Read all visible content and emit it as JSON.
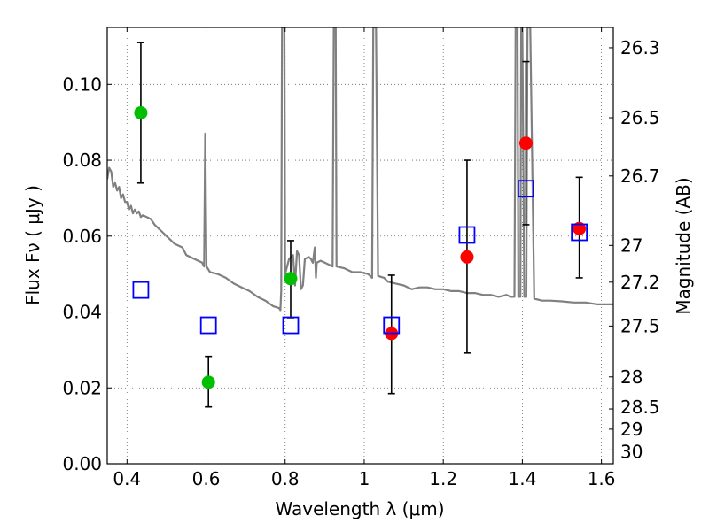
{
  "chart_data": {
    "type": "scatter",
    "xlabel": "Wavelength  λ (μm)",
    "ylabel": "Flux  Fν  ( μJy )",
    "y2label": "Magnitude (AB)",
    "xlim": [
      0.35,
      1.63
    ],
    "ylim": [
      0.0,
      0.115
    ],
    "grid": true,
    "x_ticks": [
      "0.4",
      "0.6",
      "0.8",
      "1",
      "1.2",
      "1.4",
      "1.6"
    ],
    "y_ticks": [
      "0.00",
      "0.02",
      "0.04",
      "0.06",
      "0.08",
      "0.10"
    ],
    "mag_ticks": [
      "26.3",
      "26.5",
      "26.7",
      "27",
      "27.2",
      "27.5",
      "28",
      "28.5",
      "29",
      "30"
    ],
    "series": [
      {
        "marker": "circle",
        "color": "#00bf00",
        "points": [
          {
            "x": 0.435,
            "y": 0.0925,
            "ylo": 0.074,
            "yhi": 0.111
          },
          {
            "x": 0.606,
            "y": 0.0215,
            "ylo": 0.015,
            "yhi": 0.0283
          },
          {
            "x": 0.814,
            "y": 0.0488,
            "ylo": 0.0385,
            "yhi": 0.0588
          }
        ]
      },
      {
        "marker": "circle",
        "color": "#ff0000",
        "points": [
          {
            "x": 1.069,
            "y": 0.0343,
            "ylo": 0.0185,
            "yhi": 0.0497
          },
          {
            "x": 1.26,
            "y": 0.0545,
            "ylo": 0.0292,
            "yhi": 0.08
          },
          {
            "x": 1.409,
            "y": 0.0845,
            "ylo": 0.063,
            "yhi": 0.106
          },
          {
            "x": 1.544,
            "y": 0.062,
            "ylo": 0.049,
            "yhi": 0.0755
          }
        ]
      },
      {
        "marker": "open-square",
        "color": "#0000ff",
        "points": [
          {
            "x": 0.435,
            "y": 0.0458
          },
          {
            "x": 0.606,
            "y": 0.0365
          },
          {
            "x": 0.814,
            "y": 0.0365
          },
          {
            "x": 1.069,
            "y": 0.0365
          },
          {
            "x": 1.26,
            "y": 0.0603
          },
          {
            "x": 1.409,
            "y": 0.0725
          },
          {
            "x": 1.544,
            "y": 0.061
          }
        ]
      },
      {
        "type": "line",
        "color": "#808080",
        "points": [
          [
            0.35,
            0.075
          ],
          [
            0.355,
            0.078
          ],
          [
            0.36,
            0.077
          ],
          [
            0.365,
            0.073
          ],
          [
            0.37,
            0.074
          ],
          [
            0.375,
            0.072
          ],
          [
            0.38,
            0.073
          ],
          [
            0.385,
            0.07
          ],
          [
            0.39,
            0.071
          ],
          [
            0.395,
            0.069
          ],
          [
            0.4,
            0.069
          ],
          [
            0.405,
            0.067
          ],
          [
            0.41,
            0.068
          ],
          [
            0.415,
            0.066
          ],
          [
            0.42,
            0.067
          ],
          [
            0.425,
            0.066
          ],
          [
            0.43,
            0.0665
          ],
          [
            0.435,
            0.065
          ],
          [
            0.44,
            0.0655
          ],
          [
            0.45,
            0.065
          ],
          [
            0.46,
            0.0645
          ],
          [
            0.47,
            0.063
          ],
          [
            0.48,
            0.062
          ],
          [
            0.49,
            0.061
          ],
          [
            0.5,
            0.06
          ],
          [
            0.51,
            0.059
          ],
          [
            0.52,
            0.058
          ],
          [
            0.53,
            0.0575
          ],
          [
            0.54,
            0.057
          ],
          [
            0.55,
            0.055
          ],
          [
            0.56,
            0.0545
          ],
          [
            0.57,
            0.054
          ],
          [
            0.58,
            0.0535
          ],
          [
            0.59,
            0.053
          ],
          [
            0.595,
            0.052
          ],
          [
            0.598,
            0.087
          ],
          [
            0.601,
            0.052
          ],
          [
            0.61,
            0.0505
          ],
          [
            0.63,
            0.05
          ],
          [
            0.65,
            0.049
          ],
          [
            0.67,
            0.0475
          ],
          [
            0.69,
            0.0465
          ],
          [
            0.71,
            0.0455
          ],
          [
            0.73,
            0.044
          ],
          [
            0.75,
            0.043
          ],
          [
            0.77,
            0.0415
          ],
          [
            0.785,
            0.041
          ],
          [
            0.788,
            0.0405
          ],
          [
            0.79,
            0.0455
          ],
          [
            0.792,
            0.115
          ],
          [
            0.798,
            0.115
          ],
          [
            0.8,
            0.05
          ],
          [
            0.81,
            0.054
          ],
          [
            0.82,
            0.055
          ],
          [
            0.825,
            0.047
          ],
          [
            0.83,
            0.056
          ],
          [
            0.835,
            0.055
          ],
          [
            0.84,
            0.046
          ],
          [
            0.845,
            0.047
          ],
          [
            0.85,
            0.054
          ],
          [
            0.86,
            0.0545
          ],
          [
            0.865,
            0.054
          ],
          [
            0.87,
            0.053
          ],
          [
            0.875,
            0.057
          ],
          [
            0.878,
            0.049
          ],
          [
            0.88,
            0.053
          ],
          [
            0.89,
            0.0535
          ],
          [
            0.9,
            0.053
          ],
          [
            0.91,
            0.0525
          ],
          [
            0.92,
            0.052
          ],
          [
            0.923,
            0.115
          ],
          [
            0.928,
            0.115
          ],
          [
            0.93,
            0.052
          ],
          [
            0.95,
            0.0515
          ],
          [
            0.97,
            0.0505
          ],
          [
            0.99,
            0.0505
          ],
          [
            1.01,
            0.05
          ],
          [
            1.02,
            0.049
          ],
          [
            1.023,
            0.115
          ],
          [
            1.03,
            0.115
          ],
          [
            1.035,
            0.0495
          ],
          [
            1.05,
            0.049
          ],
          [
            1.06,
            0.048
          ],
          [
            1.08,
            0.0475
          ],
          [
            1.1,
            0.047
          ],
          [
            1.12,
            0.046
          ],
          [
            1.14,
            0.0465
          ],
          [
            1.16,
            0.0465
          ],
          [
            1.18,
            0.046
          ],
          [
            1.2,
            0.046
          ],
          [
            1.22,
            0.0455
          ],
          [
            1.24,
            0.0455
          ],
          [
            1.26,
            0.045
          ],
          [
            1.28,
            0.045
          ],
          [
            1.3,
            0.0445
          ],
          [
            1.32,
            0.0445
          ],
          [
            1.34,
            0.044
          ],
          [
            1.36,
            0.0445
          ],
          [
            1.37,
            0.044
          ],
          [
            1.38,
            0.044
          ],
          [
            1.383,
            0.115
          ],
          [
            1.388,
            0.115
          ],
          [
            1.39,
            0.044
          ],
          [
            1.395,
            0.044
          ],
          [
            1.397,
            0.115
          ],
          [
            1.4,
            0.115
          ],
          [
            1.405,
            0.044
          ],
          [
            1.41,
            0.044
          ],
          [
            1.413,
            0.115
          ],
          [
            1.42,
            0.115
          ],
          [
            1.43,
            0.0435
          ],
          [
            1.45,
            0.043
          ],
          [
            1.47,
            0.043
          ],
          [
            1.5,
            0.0428
          ],
          [
            1.53,
            0.0425
          ],
          [
            1.56,
            0.0425
          ],
          [
            1.59,
            0.042
          ],
          [
            1.63,
            0.042
          ]
        ]
      }
    ]
  }
}
